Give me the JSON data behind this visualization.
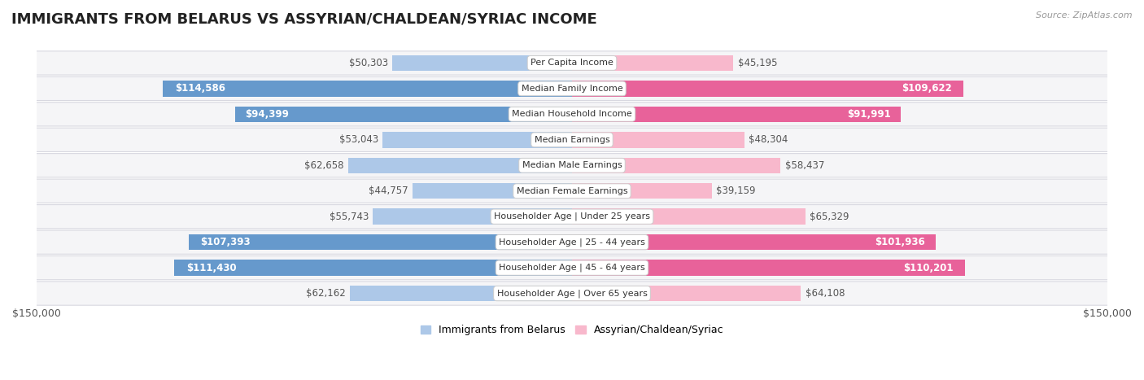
{
  "title": "IMMIGRANTS FROM BELARUS VS ASSYRIAN/CHALDEAN/SYRIAC INCOME",
  "source": "Source: ZipAtlas.com",
  "categories": [
    "Per Capita Income",
    "Median Family Income",
    "Median Household Income",
    "Median Earnings",
    "Median Male Earnings",
    "Median Female Earnings",
    "Householder Age | Under 25 years",
    "Householder Age | 25 - 44 years",
    "Householder Age | 45 - 64 years",
    "Householder Age | Over 65 years"
  ],
  "belarus_values": [
    50303,
    114586,
    94399,
    53043,
    62658,
    44757,
    55743,
    107393,
    111430,
    62162
  ],
  "assyrian_values": [
    45195,
    109622,
    91991,
    48304,
    58437,
    39159,
    65329,
    101936,
    110201,
    64108
  ],
  "belarus_color_light": "#adc8e8",
  "belarus_color_dark": "#6699cc",
  "assyrian_color_light": "#f8b8cc",
  "assyrian_color_dark": "#e8629a",
  "inside_label_color": "#ffffff",
  "outside_label_color": "#555555",
  "max_value": 150000,
  "inside_threshold": 75000,
  "legend_belarus": "Immigrants from Belarus",
  "legend_assyrian": "Assyrian/Chaldean/Syriac",
  "bar_height": 0.62,
  "title_fontsize": 13,
  "label_fontsize": 8.5,
  "category_fontsize": 8,
  "axis_label_fontsize": 9,
  "row_bg": "#f5f5f7",
  "row_border": "#d8d8e0"
}
